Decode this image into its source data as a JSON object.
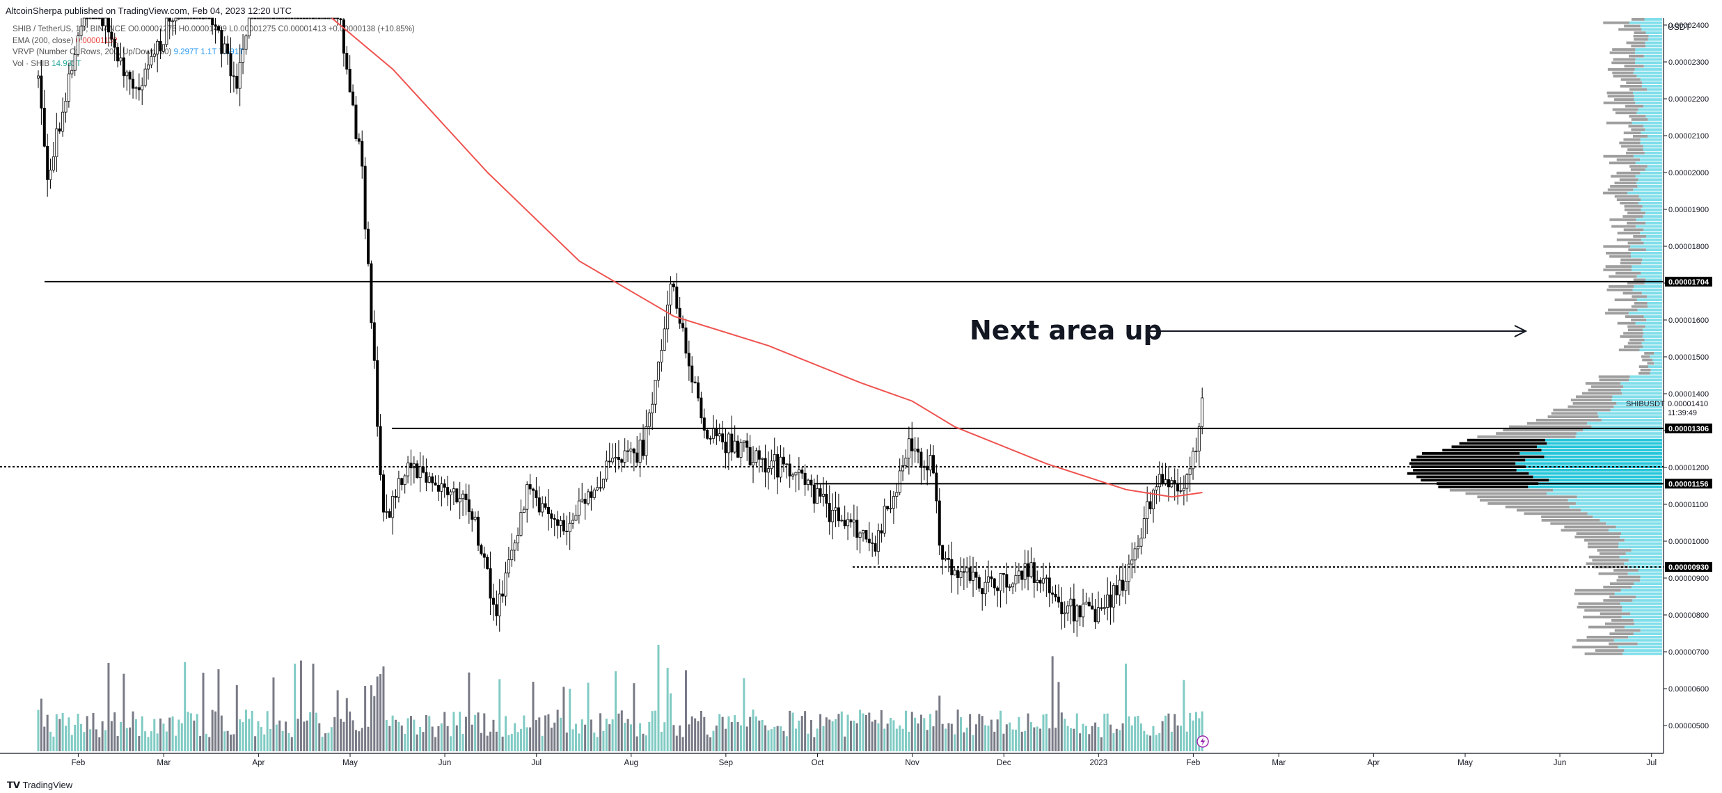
{
  "header": {
    "publish_text": "AltcoinSherpa published on TradingView.com, Feb 04, 2023 12:20 UTC"
  },
  "legend": {
    "symbol_line": "SHIB / TetherUS, 1D, BINANCE  O0.00001275 H0.00001469 L0.00001275 C0.00001413 +0.00000138 (+10.85%)",
    "ema_label": "EMA (200, close)",
    "ema_value": "0.00001132",
    "vrvp_label": "VRVP (Number Of Rows, 200, Up/Down, 20)",
    "vrvp_values": "9.297T  1.1T  7.691T",
    "vol_label": "Vol · SHIB",
    "vol_value": "14.931T"
  },
  "annotation": {
    "text": "Next area up"
  },
  "footer": {
    "brand": "TradingView"
  },
  "price_axis": {
    "currency": "USDT",
    "ticks": [
      "0.00002400",
      "0.00002300",
      "0.00002200",
      "0.00002100",
      "0.00002000",
      "0.00001900",
      "0.00001800",
      "0.00001700",
      "0.00001600",
      "0.00001500",
      "0.00001400",
      "0.00001300",
      "0.00001200",
      "0.00001100",
      "0.00001000",
      "0.00000900",
      "0.00000800",
      "0.00000700",
      "0.00000600",
      "0.00000500"
    ],
    "ticker_label": "SHIBUSDT",
    "last_price": "0.00001410",
    "countdown": "11:39:49",
    "level_badges": [
      "0.00001704",
      "0.00001306",
      "0.00001156",
      "0.00000930"
    ]
  },
  "time_axis": {
    "ticks": [
      "Feb",
      "Mar",
      "Apr",
      "May",
      "Jun",
      "Jul",
      "Aug",
      "Sep",
      "Oct",
      "Nov",
      "Dec",
      "2023",
      "Feb",
      "Mar",
      "Apr",
      "May",
      "Jun",
      "Jul"
    ]
  },
  "chart_data": {
    "type": "candlestick",
    "symbol": "SHIB / TetherUS",
    "interval": "1D",
    "exchange": "BINANCE",
    "ylim": [
      4.5e-06,
      2.46e-05
    ],
    "y_scale": "linear",
    "grid": false,
    "ema_200": [
      [
        "2022-04-25",
        2.46e-05
      ],
      [
        "2022-05-15",
        2.28e-05
      ],
      [
        "2022-06-15",
        2e-05
      ],
      [
        "2022-07-15",
        1.76e-05
      ],
      [
        "2022-08-15",
        1.61e-05
      ],
      [
        "2022-09-15",
        1.53e-05
      ],
      [
        "2022-10-15",
        1.43e-05
      ],
      [
        "2022-11-01",
        1.38e-05
      ],
      [
        "2022-11-15",
        1.31e-05
      ],
      [
        "2022-12-15",
        1.21e-05
      ],
      [
        "2023-01-10",
        1.14e-05
      ],
      [
        "2023-01-25",
        1.12e-05
      ],
      [
        "2023-02-04",
        1.132e-05
      ]
    ],
    "price_path": [
      [
        "2022-01-10",
        3e-05
      ],
      [
        "2022-01-22",
        2e-05
      ],
      [
        "2022-02-05",
        2.5e-05
      ],
      [
        "2022-02-20",
        2.2e-05
      ],
      [
        "2022-03-10",
        2.55e-05
      ],
      [
        "2022-03-25",
        2.25e-05
      ],
      [
        "2022-04-05",
        2.7e-05
      ],
      [
        "2022-04-25",
        2.55e-05
      ],
      [
        "2022-05-05",
        2e-05
      ],
      [
        "2022-05-12",
        1.05e-05
      ],
      [
        "2022-05-20",
        1.22e-05
      ],
      [
        "2022-06-10",
        1.08e-05
      ],
      [
        "2022-06-18",
        8e-06
      ],
      [
        "2022-06-28",
        1.13e-05
      ],
      [
        "2022-07-10",
        1.03e-05
      ],
      [
        "2022-07-25",
        1.2e-05
      ],
      [
        "2022-08-05",
        1.25e-05
      ],
      [
        "2022-08-14",
        1.7e-05
      ],
      [
        "2022-08-25",
        1.3e-05
      ],
      [
        "2022-09-10",
        1.23e-05
      ],
      [
        "2022-09-25",
        1.18e-05
      ],
      [
        "2022-10-05",
        1.08e-05
      ],
      [
        "2022-10-20",
        1e-05
      ],
      [
        "2022-10-31",
        1.25e-05
      ],
      [
        "2022-11-08",
        1.2e-05
      ],
      [
        "2022-11-10",
        9.5e-06
      ],
      [
        "2022-11-25",
        8.8e-06
      ],
      [
        "2022-12-10",
        9.2e-06
      ],
      [
        "2022-12-20",
        8.2e-06
      ],
      [
        "2022-12-31",
        8e-06
      ],
      [
        "2023-01-10",
        9e-06
      ],
      [
        "2023-01-20",
        1.17e-05
      ],
      [
        "2023-01-28",
        1.13e-05
      ],
      [
        "2023-02-02",
        1.27e-05
      ],
      [
        "2023-02-04",
        1.413e-05
      ]
    ],
    "horizontal_levels": [
      {
        "price": 1.704e-05,
        "style": "solid"
      },
      {
        "price": 1.306e-05,
        "style": "solid"
      },
      {
        "price": 1.202e-05,
        "style": "dotted"
      },
      {
        "price": 1.156e-05,
        "style": "solid"
      },
      {
        "price": 9.3e-06,
        "style": "dotted"
      }
    ],
    "volume_profile": {
      "poc_price": 1.202e-05,
      "value_area_color": "#26c6da",
      "outside_color": "#9e9e9e",
      "high_volume_color": "#000000"
    },
    "colors": {
      "candle_up": "#ffffff",
      "candle_down": "#000000",
      "candle_border": "#000000",
      "ema": "#ef5350",
      "volume_up": "#80cbc4",
      "volume_down": "#787b86",
      "profile_up": "#80deea",
      "profile_down": "#9e9e9e"
    }
  }
}
